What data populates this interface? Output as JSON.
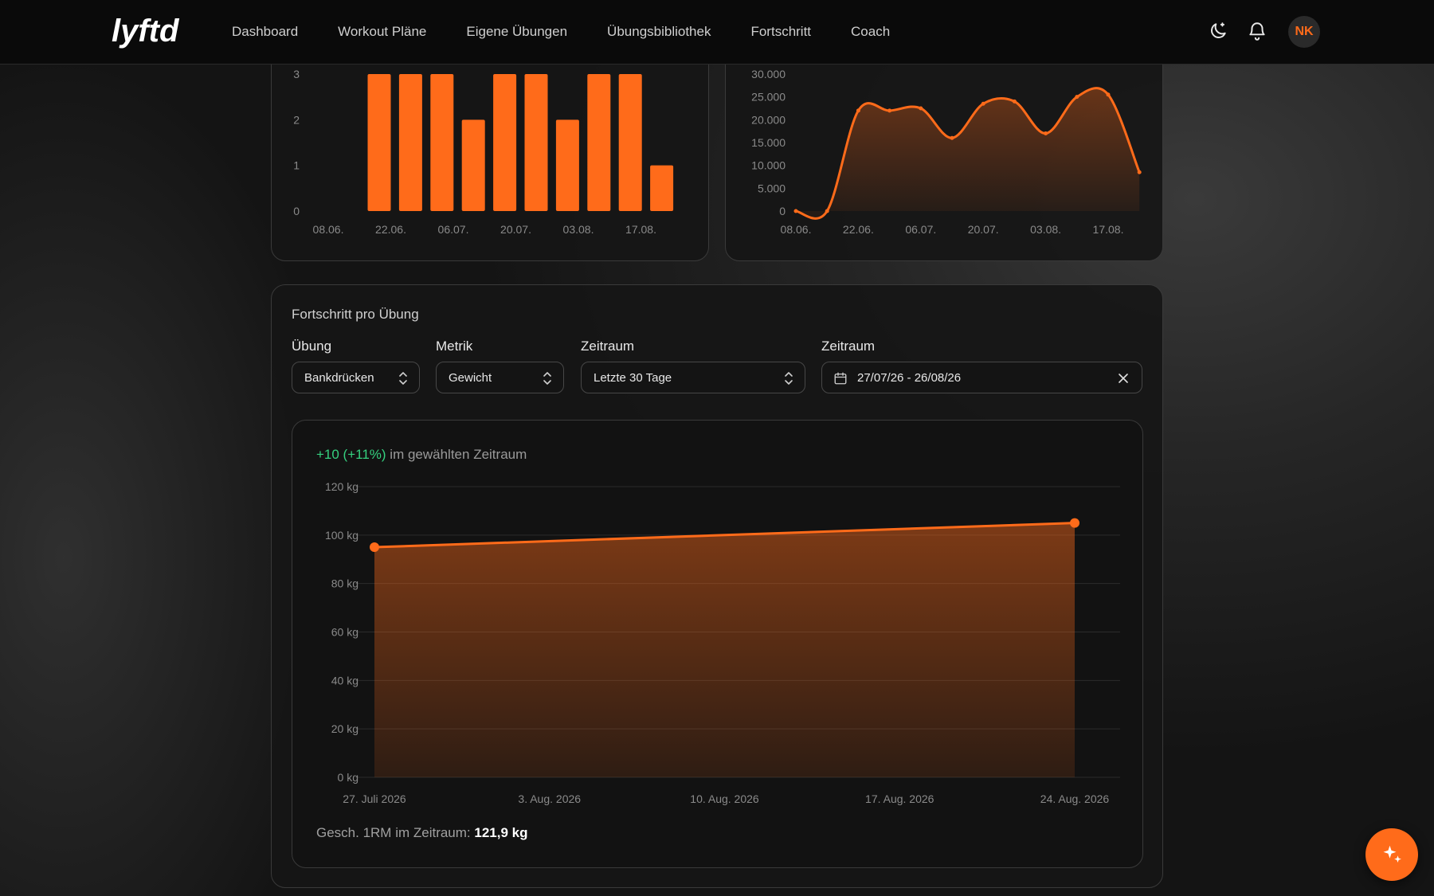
{
  "brand": {
    "name": "lyftd"
  },
  "nav": {
    "items": [
      "Dashboard",
      "Workout Pläne",
      "Eigene Übungen",
      "Übungsbibliothek",
      "Fortschritt",
      "Coach"
    ]
  },
  "header": {
    "avatar_initials": "NK",
    "icons": [
      "theme-toggle-icon",
      "bell-icon"
    ]
  },
  "colors": {
    "accent": "#ff6b1a",
    "positive": "#35d07f",
    "background": "#1a1a1a"
  },
  "top_bar_chart": {
    "y_ticks": [
      "3",
      "2",
      "1",
      "0"
    ],
    "x_ticks": [
      "08.06.",
      "22.06.",
      "06.07.",
      "20.07.",
      "03.08.",
      "17.08."
    ]
  },
  "top_area_chart": {
    "y_ticks": [
      "30.000",
      "25.000",
      "20.000",
      "15.000",
      "10.000",
      "5.000",
      "0"
    ],
    "x_ticks": [
      "08.06.",
      "22.06.",
      "06.07.",
      "20.07.",
      "03.08.",
      "17.08."
    ]
  },
  "progress": {
    "title": "Fortschritt pro Übung",
    "filters": {
      "exercise_label": "Übung",
      "exercise_value": "Bankdrücken",
      "metric_label": "Metrik",
      "metric_value": "Gewicht",
      "period_label": "Zeitraum",
      "period_value": "Letzte 30 Tage",
      "date_label": "Zeitraum",
      "date_value": "27/07/26 - 26/08/26"
    },
    "change_positive": "+10 (+11%)",
    "change_suffix": " im gewählten Zeitraum",
    "footer_label": "Gesch. 1RM im Zeitraum: ",
    "footer_value": "121,9 kg"
  },
  "chart_data": [
    {
      "type": "bar",
      "title": "",
      "x_ticks": [
        "08.06.",
        "22.06.",
        "06.07.",
        "20.07.",
        "03.08.",
        "17.08."
      ],
      "values": [
        3,
        3,
        3,
        2,
        3,
        3,
        2,
        3,
        3,
        1
      ],
      "ylim": [
        0,
        3
      ],
      "color": "#ff6b1a"
    },
    {
      "type": "area",
      "title": "",
      "x_ticks": [
        "08.06.",
        "22.06.",
        "06.07.",
        "20.07.",
        "03.08.",
        "17.08."
      ],
      "values": [
        0,
        0,
        22000,
        22000,
        22500,
        16000,
        23500,
        24000,
        17000,
        25000,
        25500,
        8500
      ],
      "ylim": [
        0,
        30000
      ],
      "color": "#ff6b1a"
    },
    {
      "type": "area",
      "title": "",
      "xlabel": "",
      "ylabel": "",
      "x": [
        "27. Juli 2026",
        "24. Aug. 2026"
      ],
      "values": [
        95,
        105
      ],
      "x_ticks": [
        "27. Juli 2026",
        "3. Aug. 2026",
        "10. Aug. 2026",
        "17. Aug. 2026",
        "24. Aug. 2026"
      ],
      "y_ticks": [
        "120 kg",
        "100 kg",
        "80 kg",
        "60 kg",
        "40 kg",
        "20 kg",
        "0 kg"
      ],
      "ylim": [
        0,
        120
      ],
      "grid": true,
      "color": "#ff6b1a"
    }
  ]
}
